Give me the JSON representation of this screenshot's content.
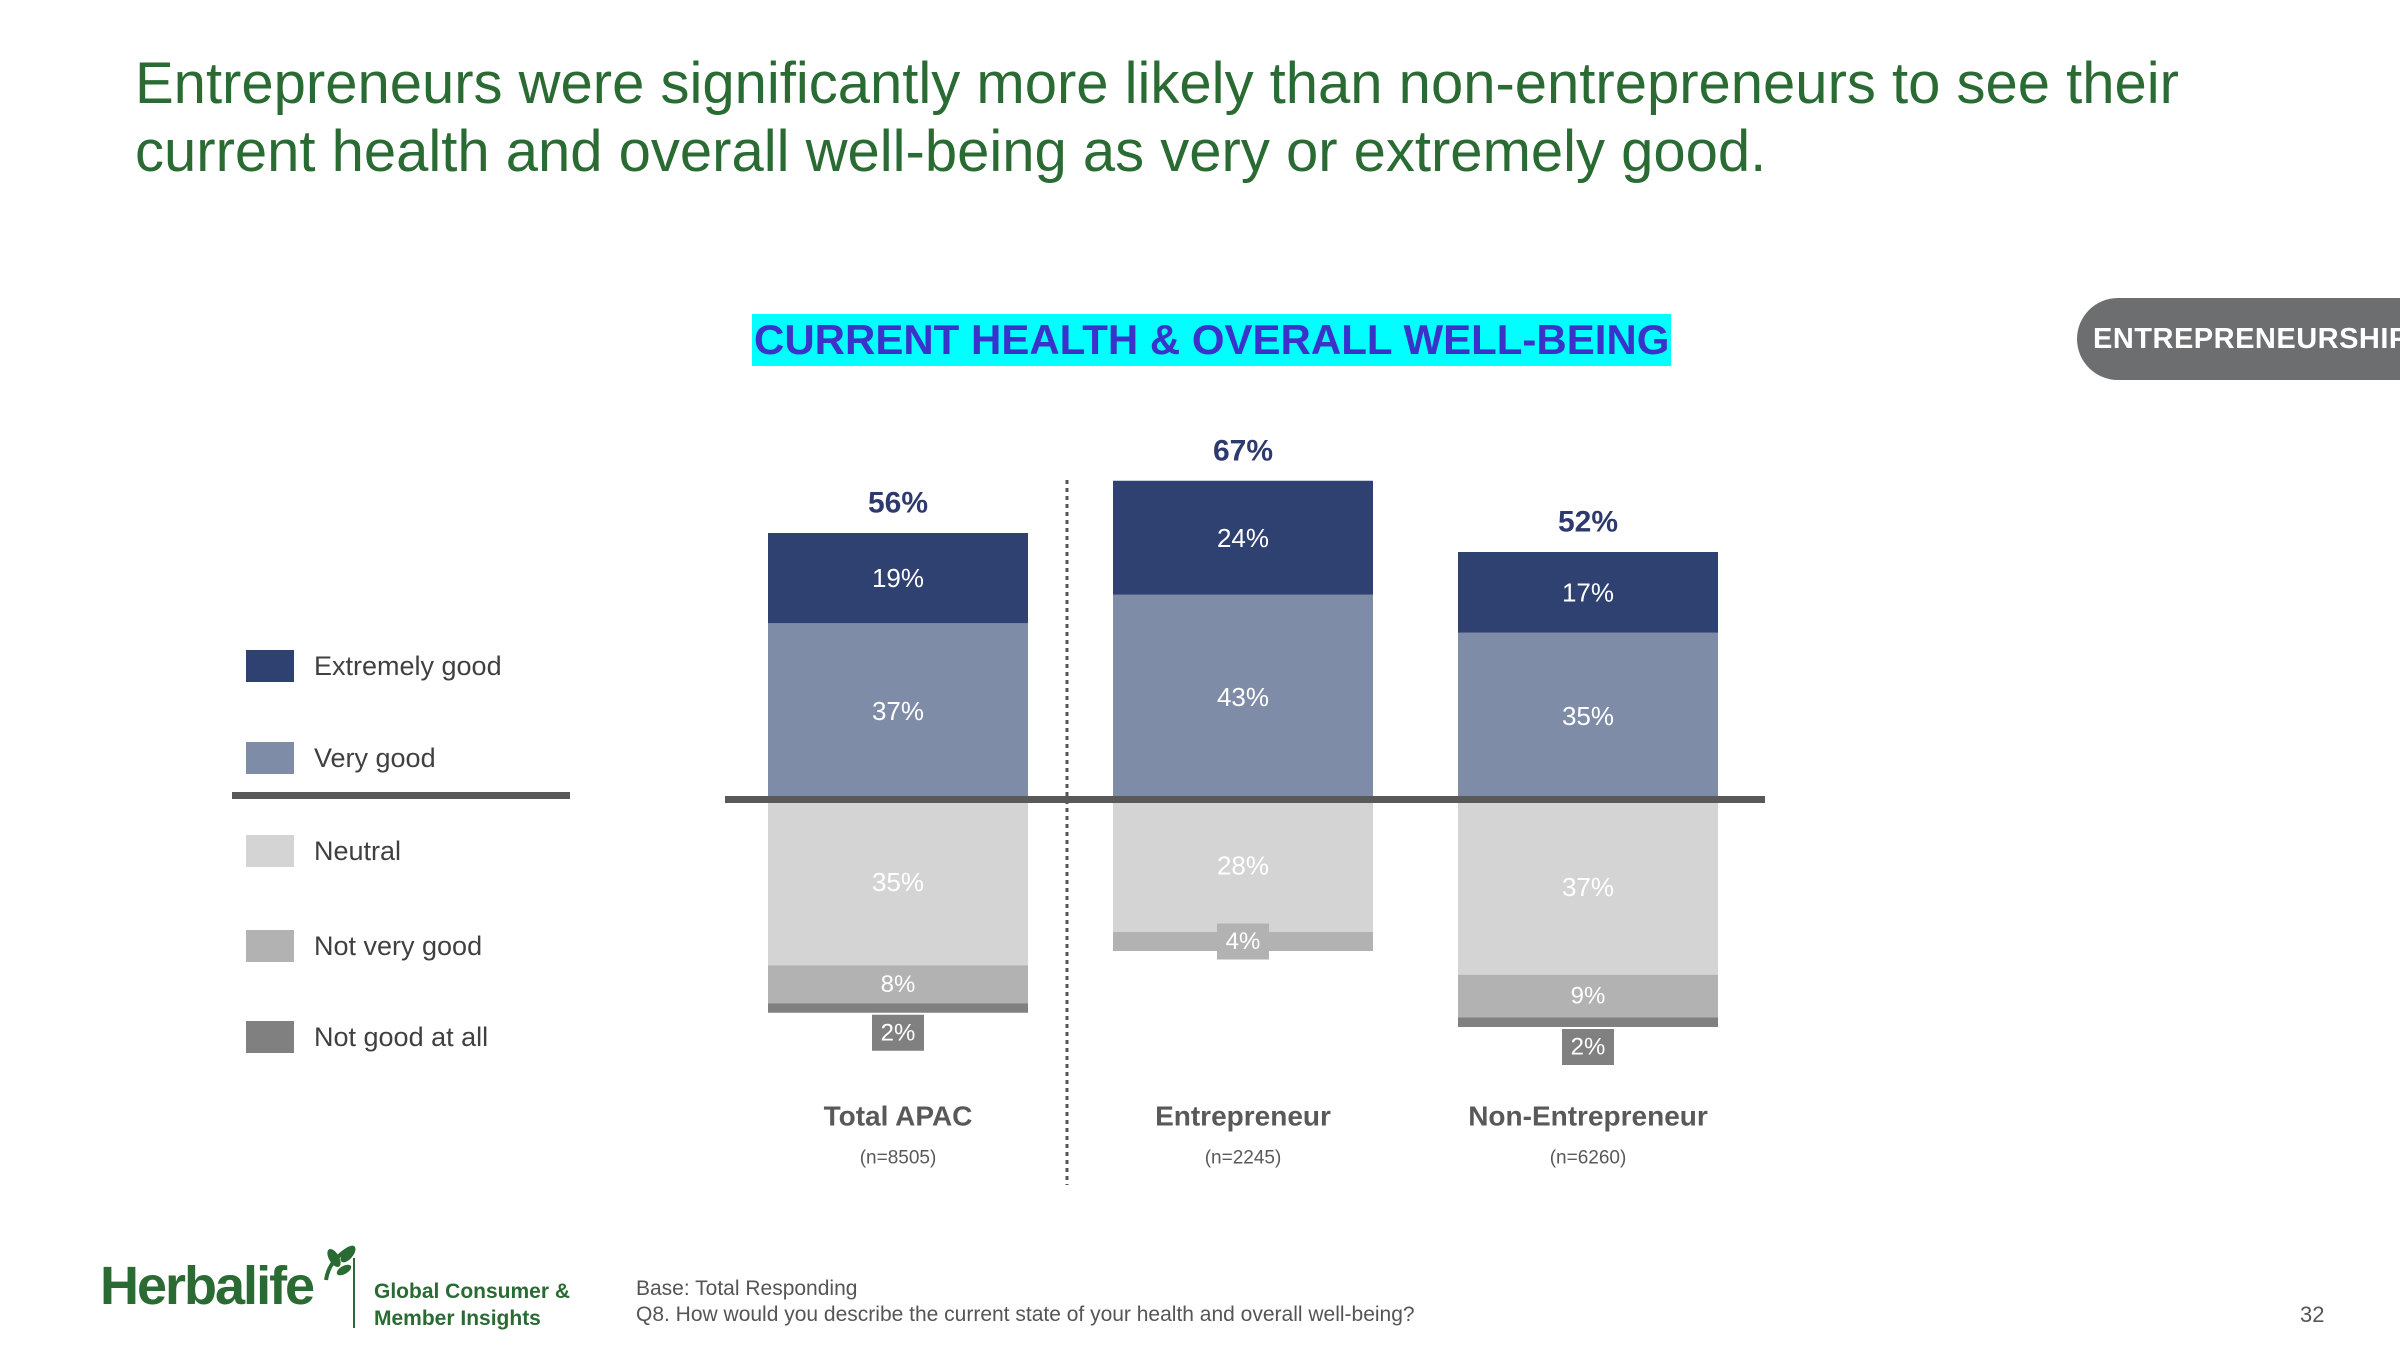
{
  "headline": "Entrepreneurs were significantly more likely than non-entrepreneurs to see their current health and overall well-being as very or extremely good.",
  "section_tag": "ENTREPRENEURSHIP",
  "legend": [
    {
      "label": "Extremely good",
      "color": "#2e4170"
    },
    {
      "label": "Very good",
      "color": "#7f8ca8"
    },
    {
      "label": "Neutral",
      "color": "#d4d4d4"
    },
    {
      "label": "Not very good",
      "color": "#b2b2b2"
    },
    {
      "label": "Not good at all",
      "color": "#808080"
    }
  ],
  "chart_data": {
    "type": "bar",
    "subtype": "diverging-stacked",
    "title": "CURRENT HEALTH & OVERALL WELL-BEING",
    "categories": [
      "Total APAC",
      "Entrepreneur",
      "Non-Entrepreneur"
    ],
    "sample_sizes": [
      "(n=8505)",
      "(n=2245)",
      "(n=6260)"
    ],
    "totals_positive": [
      "56%",
      "67%",
      "52%"
    ],
    "series": [
      {
        "name": "Extremely good",
        "direction": "positive",
        "values": [
          19,
          24,
          17
        ],
        "labels": [
          "19%",
          "24%",
          "17%"
        ],
        "color": "#2e4170",
        "label_color": "#ffffff"
      },
      {
        "name": "Very good",
        "direction": "positive",
        "values": [
          37,
          43,
          35
        ],
        "labels": [
          "37%",
          "43%",
          "35%"
        ],
        "color": "#7f8ca8",
        "label_color": "#ffffff"
      },
      {
        "name": "Neutral",
        "direction": "negative",
        "values": [
          35,
          28,
          37
        ],
        "labels": [
          "35%",
          "28%",
          "37%"
        ],
        "color": "#d4d4d4",
        "label_color": "#ffffff"
      },
      {
        "name": "Not very good",
        "direction": "negative",
        "values": [
          8,
          4,
          9
        ],
        "labels": [
          "8%",
          "4%",
          "9%"
        ],
        "color": "#b2b2b2",
        "label_color": "#ffffff"
      },
      {
        "name": "Not good at all",
        "direction": "negative",
        "values": [
          2,
          0,
          2
        ],
        "labels": [
          "2%",
          "",
          "2%"
        ],
        "color": "#808080",
        "label_color": "#ffffff"
      }
    ],
    "total_label_color": "#2e3a6e",
    "axis_color": "#595959"
  },
  "footer": {
    "logo_text": "Herbalife",
    "logo_sub_line1": "Global Consumer &",
    "logo_sub_line2": "Member Insights",
    "base_note": "Base: Total Responding",
    "question_note": "Q8. How would you describe the current state of your health and overall well-being?",
    "page_number": "32"
  }
}
